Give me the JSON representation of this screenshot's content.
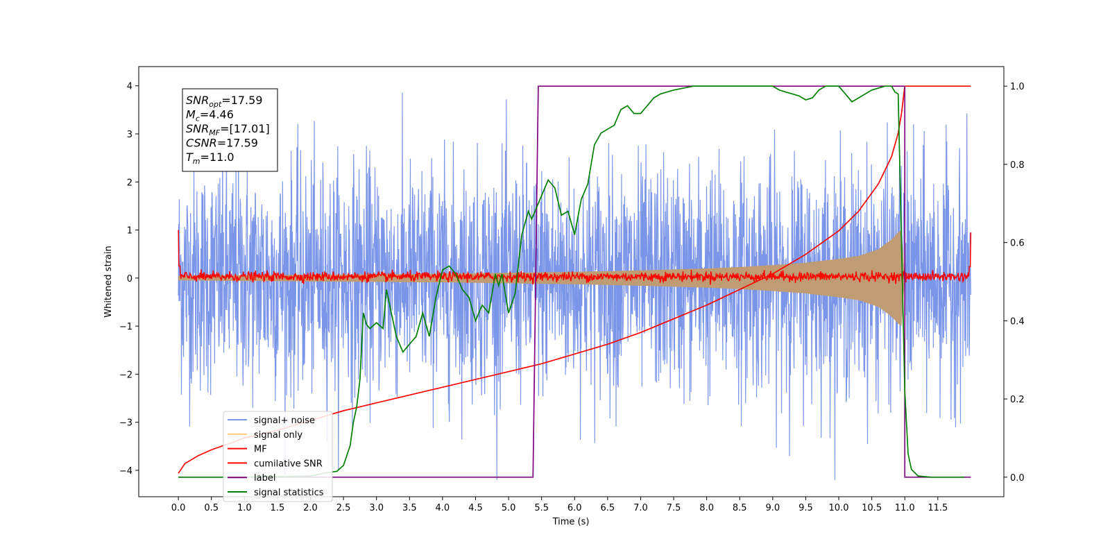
{
  "chart_data": {
    "type": "line",
    "xlabel": "Time (s)",
    "ylabel": "Whitened strain",
    "xlim": [
      -0.6,
      12.5
    ],
    "ylim": [
      -4.55,
      4.4
    ],
    "ylim_right": [
      -0.05,
      1.05
    ],
    "x_ticks": [
      "0.0",
      "0.5",
      "1.0",
      "1.5",
      "2.0",
      "2.5",
      "3.0",
      "3.5",
      "4.0",
      "4.5",
      "5.0",
      "5.5",
      "6.0",
      "6.5",
      "7.0",
      "7.5",
      "8.0",
      "8.5",
      "9.0",
      "9.5",
      "10.0",
      "10.5",
      "11.0",
      "11.5"
    ],
    "y_ticks_left": [
      "−4",
      "−3",
      "−2",
      "−1",
      "0",
      "1",
      "2",
      "3",
      "4"
    ],
    "y_ticks_right": [
      "0.0",
      "0.2",
      "0.4",
      "0.6",
      "0.8",
      "1.0"
    ],
    "grid": false,
    "legend_position": "lower-left",
    "annotation": {
      "lines": [
        {
          "sym": "SNR",
          "sub": "opt",
          "val": "=17.59"
        },
        {
          "sym": "M",
          "sub": "c",
          "val": "=4.46"
        },
        {
          "sym": "SNR",
          "sub": "MF",
          "val": "=[17.01]"
        },
        {
          "sym": "CSNR",
          "sub": "",
          "val": "=17.59"
        },
        {
          "sym": "T",
          "sub": "m",
          "val": "=11.0"
        }
      ]
    },
    "noise": {
      "name": "signal+ noise",
      "color": "#7b96e8",
      "x_range": [
        0.0,
        12.0
      ],
      "typical_amplitude": 1.9,
      "extreme_range": [
        -4.2,
        4.0
      ]
    },
    "signal_envelope": {
      "name": "signal only",
      "color": "#ffcc80",
      "fill_color": "#bf9c73",
      "x": [
        0.0,
        1.0,
        2.0,
        3.0,
        4.0,
        5.0,
        6.0,
        7.0,
        8.0,
        8.5,
        9.0,
        9.5,
        10.0,
        10.3,
        10.6,
        10.8,
        10.9,
        10.95,
        11.0
      ],
      "amplitude": [
        0.05,
        0.06,
        0.07,
        0.08,
        0.09,
        0.11,
        0.13,
        0.16,
        0.2,
        0.23,
        0.27,
        0.32,
        0.4,
        0.46,
        0.6,
        0.8,
        0.95,
        1.0,
        0.0
      ]
    },
    "mf": {
      "name": "MF",
      "color": "#ff0000",
      "x_range": [
        0.0,
        12.0
      ],
      "baseline": 0.03,
      "jitter": 0.05,
      "start_value": 1.0,
      "end_value": 0.95
    },
    "cumulative_snr": {
      "name": "cumilative SNR",
      "color": "#ff0000",
      "axis": "right",
      "x": [
        0.0,
        0.1,
        0.3,
        0.5,
        1.0,
        1.5,
        2.0,
        2.5,
        3.0,
        3.5,
        4.0,
        4.5,
        5.0,
        5.5,
        6.0,
        6.5,
        7.0,
        7.5,
        8.0,
        8.5,
        9.0,
        9.5,
        10.0,
        10.3,
        10.6,
        10.8,
        10.9,
        10.95,
        11.0,
        12.0
      ],
      "y": [
        0.01,
        0.035,
        0.055,
        0.07,
        0.1,
        0.12,
        0.145,
        0.17,
        0.19,
        0.21,
        0.23,
        0.25,
        0.27,
        0.29,
        0.315,
        0.34,
        0.37,
        0.405,
        0.44,
        0.48,
        0.52,
        0.57,
        0.63,
        0.68,
        0.75,
        0.82,
        0.88,
        0.93,
        1.0,
        1.0
      ]
    },
    "label": {
      "name": "label",
      "color": "#800080",
      "axis": "right",
      "x": [
        0.0,
        5.37,
        5.37,
        5.45,
        10.95,
        11.0,
        11.0,
        12.0
      ],
      "y": [
        0.0,
        0.0,
        0.0,
        1.0,
        1.0,
        1.0,
        0.0,
        0.0
      ]
    },
    "signal_statistics": {
      "name": "signal statistics",
      "color": "#008000",
      "axis": "right",
      "x": [
        0.0,
        1.0,
        2.0,
        2.2,
        2.4,
        2.5,
        2.6,
        2.65,
        2.7,
        2.75,
        2.8,
        2.85,
        2.9,
        3.0,
        3.1,
        3.15,
        3.2,
        3.3,
        3.4,
        3.5,
        3.6,
        3.7,
        3.8,
        3.9,
        4.0,
        4.1,
        4.2,
        4.3,
        4.4,
        4.5,
        4.6,
        4.7,
        4.8,
        4.85,
        4.9,
        5.0,
        5.1,
        5.2,
        5.3,
        5.35,
        5.4,
        5.5,
        5.6,
        5.7,
        5.8,
        5.9,
        6.0,
        6.1,
        6.2,
        6.3,
        6.4,
        6.5,
        6.6,
        6.7,
        6.8,
        6.9,
        7.0,
        7.1,
        7.2,
        7.3,
        7.5,
        7.8,
        8.5,
        9.0,
        9.1,
        9.2,
        9.3,
        9.4,
        9.5,
        9.6,
        9.7,
        9.8,
        9.9,
        10.0,
        10.1,
        10.2,
        10.3,
        10.5,
        10.7,
        10.8,
        10.85,
        10.9,
        10.95,
        11.0,
        11.05,
        11.1,
        11.2,
        11.4,
        11.9
      ],
      "y": [
        0.0,
        0.0,
        0.003,
        0.01,
        0.015,
        0.03,
        0.08,
        0.14,
        0.18,
        0.25,
        0.42,
        0.39,
        0.38,
        0.395,
        0.38,
        0.48,
        0.44,
        0.36,
        0.32,
        0.34,
        0.36,
        0.42,
        0.36,
        0.46,
        0.53,
        0.54,
        0.52,
        0.48,
        0.46,
        0.4,
        0.44,
        0.42,
        0.52,
        0.49,
        0.52,
        0.42,
        0.47,
        0.62,
        0.68,
        0.66,
        0.68,
        0.72,
        0.76,
        0.74,
        0.67,
        0.68,
        0.62,
        0.71,
        0.75,
        0.85,
        0.88,
        0.89,
        0.9,
        0.94,
        0.95,
        0.93,
        0.93,
        0.95,
        0.97,
        0.98,
        0.99,
        1.0,
        1.0,
        1.0,
        0.99,
        0.985,
        0.98,
        0.975,
        0.965,
        0.97,
        0.99,
        1.0,
        1.0,
        1.0,
        0.98,
        0.96,
        0.97,
        0.99,
        1.0,
        1.0,
        0.985,
        0.98,
        0.6,
        0.22,
        0.06,
        0.02,
        0.003,
        0.0,
        0.0
      ]
    }
  }
}
